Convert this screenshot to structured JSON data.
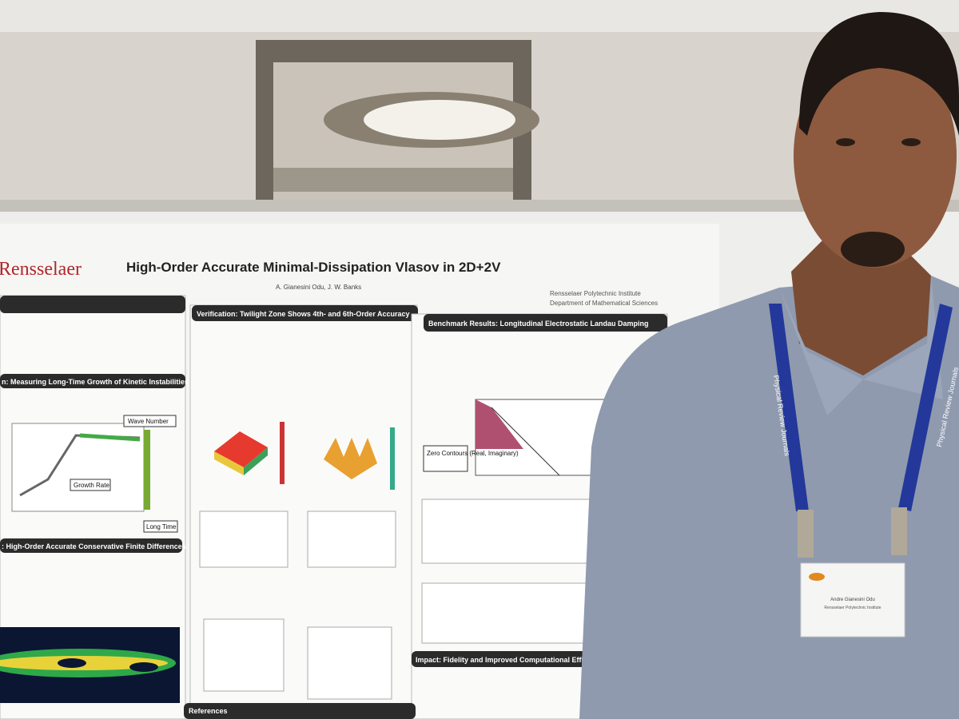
{
  "poster": {
    "logo": "Rensselaer",
    "title": "High-Order Accurate Minimal-Dissipation Vlasov in 2D+2V",
    "authors": "A. Gianesini Odu, J. W. Banks",
    "affiliation": [
      "Rensselaer Polytechnic Institute",
      "Department of Mathematical Sciences"
    ],
    "sections": [
      "Verification: Twilight Zone Shows 4th- and 6th-Order Accuracy",
      "Benchmark Results: Longitudinal Electrostatic Landau Damping",
      "n: Measuring Long-Time Growth of Kinetic Instabilities",
      ": High-Order Accurate Conservative Finite Differences",
      "Impact: Fidelity and Improved Computational Effi",
      "References"
    ],
    "callouts": [
      "Wave Number",
      "Growth Rate",
      "Long Time",
      "Zero Contours (Real, Imaginary)"
    ]
  },
  "lanyard": "Physical Review Journals",
  "badge": {
    "name": "Andre Gianesini Odu",
    "institution": "Rensselaer Polytechnic Institute"
  }
}
